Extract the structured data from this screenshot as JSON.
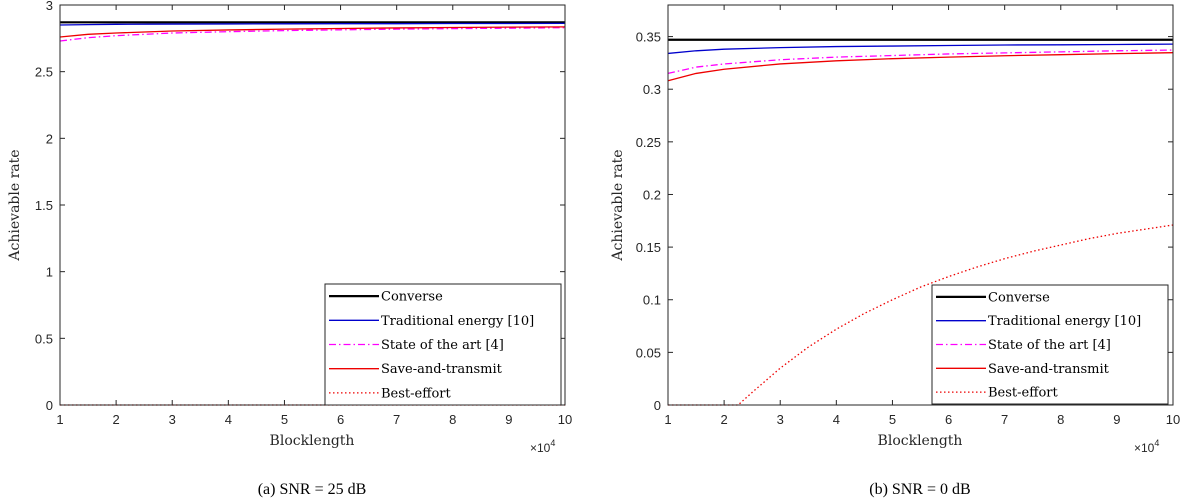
{
  "chart_data": [
    {
      "type": "line",
      "caption": "(a)  SNR = 25 dB",
      "xlabel": "Blocklength",
      "ylabel": "Achievable rate",
      "x_multiplier": "×10",
      "x_multiplier_exp": "4",
      "xlim": [
        1,
        10
      ],
      "ylim": [
        0,
        3
      ],
      "xticks": [
        1,
        2,
        3,
        4,
        5,
        6,
        7,
        8,
        9,
        10
      ],
      "yticks": [
        0,
        0.5,
        1,
        1.5,
        2,
        2.5,
        3
      ],
      "ytick_labels": [
        "0",
        "0.5",
        "1",
        "1.5",
        "2",
        "2.5",
        "3"
      ],
      "legend_position": "bottom-right",
      "series": [
        {
          "name": "Converse",
          "color": "#000000",
          "style": "solid",
          "width": 2.2,
          "x": [
            1,
            2,
            3,
            4,
            5,
            6,
            7,
            8,
            9,
            10
          ],
          "y": [
            2.87,
            2.87,
            2.87,
            2.87,
            2.87,
            2.87,
            2.87,
            2.87,
            2.87,
            2.87
          ]
        },
        {
          "name": "Traditional energy [10]",
          "color": "#0000cc",
          "style": "solid",
          "width": 1.3,
          "x": [
            1,
            1.5,
            2,
            3,
            4,
            5,
            6,
            7,
            8,
            9,
            10
          ],
          "y": [
            2.85,
            2.853,
            2.855,
            2.857,
            2.858,
            2.859,
            2.86,
            2.86,
            2.861,
            2.861,
            2.862
          ]
        },
        {
          "name": "State of the art [4]",
          "color": "#ff00ff",
          "style": "dashdot",
          "width": 1.3,
          "x": [
            1,
            1.5,
            2,
            3,
            4,
            5,
            6,
            7,
            8,
            9,
            10
          ],
          "y": [
            2.73,
            2.755,
            2.77,
            2.79,
            2.8,
            2.808,
            2.814,
            2.819,
            2.823,
            2.826,
            2.83
          ]
        },
        {
          "name": "Save-and-transmit",
          "color": "#ee0000",
          "style": "solid",
          "width": 1.3,
          "x": [
            1,
            1.5,
            2,
            3,
            4,
            5,
            6,
            7,
            8,
            9,
            10
          ],
          "y": [
            2.76,
            2.78,
            2.79,
            2.805,
            2.813,
            2.819,
            2.824,
            2.828,
            2.831,
            2.834,
            2.836
          ]
        },
        {
          "name": "Best-effort",
          "color": "#ee0000",
          "style": "dotted",
          "width": 1.3,
          "x": [
            1,
            10
          ],
          "y": [
            0,
            0
          ]
        }
      ]
    },
    {
      "type": "line",
      "caption": "(b)  SNR = 0 dB",
      "xlabel": "Blocklength",
      "ylabel": "Achievable rate",
      "x_multiplier": "×10",
      "x_multiplier_exp": "4",
      "xlim": [
        1,
        10
      ],
      "ylim": [
        0,
        0.38
      ],
      "xticks": [
        1,
        2,
        3,
        4,
        5,
        6,
        7,
        8,
        9,
        10
      ],
      "yticks": [
        0,
        0.05,
        0.1,
        0.15,
        0.2,
        0.25,
        0.3,
        0.35
      ],
      "ytick_labels": [
        "0",
        "0.05",
        "0.1",
        "0.15",
        "0.2",
        "0.25",
        "0.3",
        "0.35"
      ],
      "legend_position": "bottom-right",
      "series": [
        {
          "name": "Converse",
          "color": "#000000",
          "style": "solid",
          "width": 2.2,
          "x": [
            1,
            2,
            3,
            4,
            5,
            6,
            7,
            8,
            9,
            10
          ],
          "y": [
            0.347,
            0.347,
            0.347,
            0.347,
            0.347,
            0.347,
            0.347,
            0.347,
            0.347,
            0.347
          ]
        },
        {
          "name": "Traditional energy [10]",
          "color": "#0000cc",
          "style": "solid",
          "width": 1.3,
          "x": [
            1,
            1.5,
            2,
            3,
            4,
            5,
            6,
            7,
            8,
            9,
            10
          ],
          "y": [
            0.334,
            0.3365,
            0.338,
            0.3395,
            0.3405,
            0.341,
            0.3415,
            0.342,
            0.3422,
            0.3425,
            0.3428
          ]
        },
        {
          "name": "State of the art [4]",
          "color": "#ff00ff",
          "style": "dashdot",
          "width": 1.3,
          "x": [
            1,
            1.5,
            2,
            3,
            4,
            5,
            6,
            7,
            8,
            9,
            10
          ],
          "y": [
            0.315,
            0.321,
            0.324,
            0.328,
            0.3305,
            0.332,
            0.3335,
            0.3345,
            0.3355,
            0.3365,
            0.3372
          ]
        },
        {
          "name": "Save-and-transmit",
          "color": "#ee0000",
          "style": "solid",
          "width": 1.3,
          "x": [
            1,
            1.5,
            2,
            3,
            4,
            5,
            6,
            7,
            8,
            9,
            10
          ],
          "y": [
            0.308,
            0.315,
            0.319,
            0.324,
            0.327,
            0.329,
            0.3305,
            0.3318,
            0.3328,
            0.3338,
            0.3347
          ]
        },
        {
          "name": "Best-effort",
          "color": "#ee0000",
          "style": "dotted",
          "width": 1.3,
          "x": [
            1,
            1.5,
            2,
            2.25,
            2.5,
            3,
            3.5,
            4,
            4.5,
            5,
            5.5,
            6,
            6.5,
            7,
            7.5,
            8,
            8.5,
            9,
            9.5,
            10
          ],
          "y": [
            0,
            0,
            0,
            0,
            0.012,
            0.035,
            0.055,
            0.072,
            0.087,
            0.1,
            0.112,
            0.122,
            0.131,
            0.139,
            0.146,
            0.152,
            0.158,
            0.163,
            0.167,
            0.171
          ]
        }
      ]
    }
  ]
}
